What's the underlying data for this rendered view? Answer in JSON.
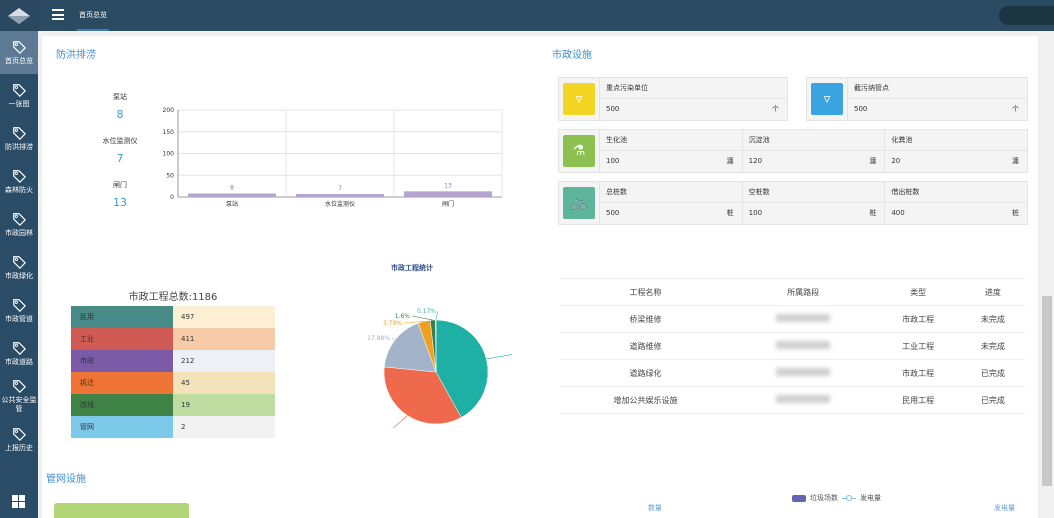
{
  "topbar": {
    "tab": "首页总览"
  },
  "sidebar": {
    "items": [
      {
        "label": "首页总览",
        "active": true
      },
      {
        "label": "一张图"
      },
      {
        "label": "防洪排涝"
      },
      {
        "label": "森林防火"
      },
      {
        "label": "市政园林"
      },
      {
        "label": "市政绿化"
      },
      {
        "label": "市政管道"
      },
      {
        "label": "市政道路"
      },
      {
        "label": "公共安全监管"
      },
      {
        "label": "上报历史"
      }
    ]
  },
  "flood": {
    "title": "防洪排涝",
    "stats": [
      {
        "label": "泵站",
        "value": "8"
      },
      {
        "label": "水位监测仪",
        "value": "7"
      },
      {
        "label": "闸门",
        "value": "13"
      }
    ]
  },
  "chart_data": [
    {
      "type": "bar",
      "categories": [
        "泵站",
        "水位监测仪",
        "闸门"
      ],
      "values": [
        8,
        7,
        13
      ],
      "ylim": [
        0,
        200
      ],
      "yticks": [
        0,
        50,
        100,
        150,
        200
      ],
      "grid": true,
      "color": "#b3a5cf"
    },
    {
      "type": "pie",
      "title": "市政工程统计",
      "labels": [
        "0.17%",
        "1.6%",
        "3.79%",
        "17.88%",
        "34.65%",
        "41.91%"
      ],
      "values": [
        2,
        19,
        45,
        212,
        411,
        497
      ],
      "colors": [
        "#3db8a6",
        "#3b7d4c",
        "#f0a020",
        "#a3b3c9",
        "#ef6a4d",
        "#1eafa5"
      ]
    }
  ],
  "muni": {
    "title": "市政设施",
    "cards": [
      [
        {
          "label": "重点污染单位",
          "value": "500",
          "unit": "个"
        }
      ],
      [
        {
          "label": "截污纳管点",
          "value": "500",
          "unit": "个"
        }
      ],
      [
        {
          "label": "生化池",
          "value": "100",
          "unit": "瀍"
        },
        {
          "label": "沉淀池",
          "value": "120",
          "unit": "瀍"
        },
        {
          "label": "化粪池",
          "value": "20",
          "unit": "瀍"
        }
      ],
      [
        {
          "label": "总桩数",
          "value": "500",
          "unit": "桩"
        },
        {
          "label": "空桩数",
          "value": "100",
          "unit": "桩"
        },
        {
          "label": "借出桩数",
          "value": "400",
          "unit": "桩"
        }
      ]
    ],
    "icon_colors": [
      "#f2d523",
      "#3aa4e0",
      "#8cc152",
      "#5fb59b"
    ]
  },
  "projects": {
    "title": "市政工程总数:1186",
    "rows": [
      {
        "label": "民用",
        "value": "497",
        "c1": "#478a86",
        "c2": "#fdefd4"
      },
      {
        "label": "工业",
        "value": "411",
        "c1": "#d05b55",
        "c2": "#f8cba8"
      },
      {
        "label": "市政",
        "value": "212",
        "c1": "#7b5aa8",
        "c2": "#edf0f7"
      },
      {
        "label": "拆迁",
        "value": "45",
        "c1": "#ee7436",
        "c2": "#f4e2bb"
      },
      {
        "label": "改线",
        "value": "19",
        "c1": "#3f8346",
        "c2": "#bedca0"
      },
      {
        "label": "管网",
        "value": "2",
        "c1": "#7dc9ea",
        "c2": "#f2f2f2"
      }
    ]
  },
  "table": {
    "headers": [
      "工程名称",
      "所属路段",
      "类型",
      "进度"
    ],
    "rows": [
      [
        "桥梁维修",
        "",
        "市政工程",
        "未完成"
      ],
      [
        "道路维修",
        "",
        "工业工程",
        "未完成"
      ],
      [
        "道路绿化",
        "",
        "市政工程",
        "已完成"
      ],
      [
        "增加公共娱乐设施",
        "",
        "民用工程",
        "已完成"
      ]
    ]
  },
  "pipe": {
    "title": "管网设施",
    "left_axis": "数量",
    "right_axis": "发电量",
    "legend": [
      "垃圾场数",
      "发电量"
    ]
  }
}
